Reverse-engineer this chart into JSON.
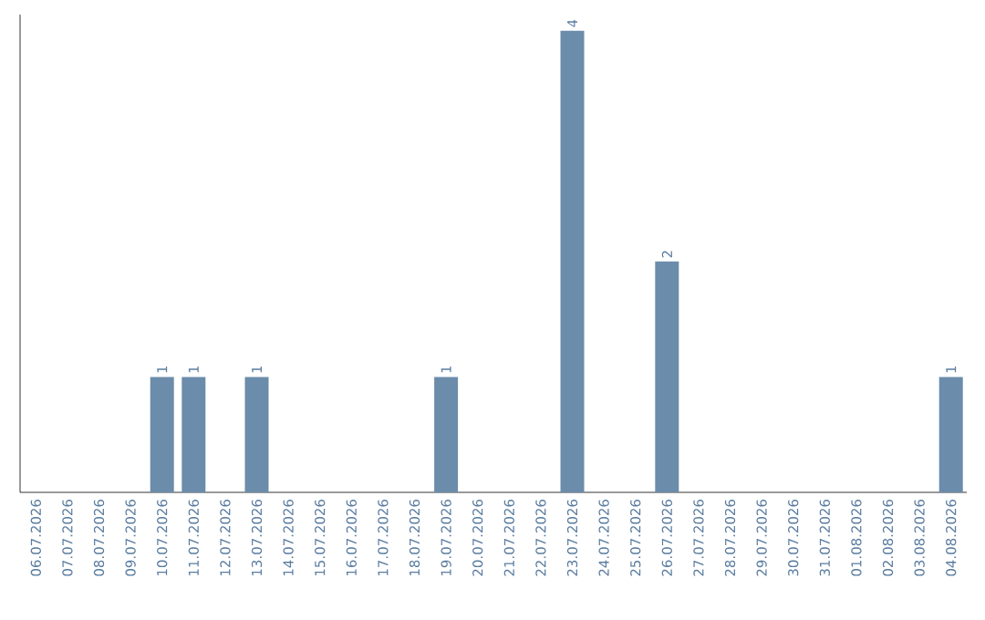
{
  "chart_data": {
    "type": "bar",
    "categories": [
      "06.07.2026",
      "07.07.2026",
      "08.07.2026",
      "09.07.2026",
      "10.07.2026",
      "11.07.2026",
      "12.07.2026",
      "13.07.2026",
      "14.07.2026",
      "15.07.2026",
      "16.07.2026",
      "17.07.2026",
      "18.07.2026",
      "19.07.2026",
      "20.07.2026",
      "21.07.2026",
      "22.07.2026",
      "23.07.2026",
      "24.07.2026",
      "25.07.2026",
      "26.07.2026",
      "27.07.2026",
      "28.07.2026",
      "29.07.2026",
      "30.07.2026",
      "31.07.2026",
      "01.08.2026",
      "02.08.2026",
      "03.08.2026",
      "04.08.2026"
    ],
    "values": [
      0,
      0,
      0,
      0,
      1,
      1,
      0,
      1,
      0,
      0,
      0,
      0,
      0,
      1,
      0,
      0,
      0,
      4,
      0,
      0,
      2,
      0,
      0,
      0,
      0,
      0,
      0,
      0,
      0,
      1
    ],
    "value_labels": [
      null,
      null,
      null,
      null,
      "1",
      "1",
      null,
      "1",
      null,
      null,
      null,
      null,
      null,
      "1",
      null,
      null,
      null,
      "4",
      null,
      null,
      "2",
      null,
      null,
      null,
      null,
      null,
      null,
      null,
      null,
      "1"
    ],
    "color": "#6b8caa"
  }
}
